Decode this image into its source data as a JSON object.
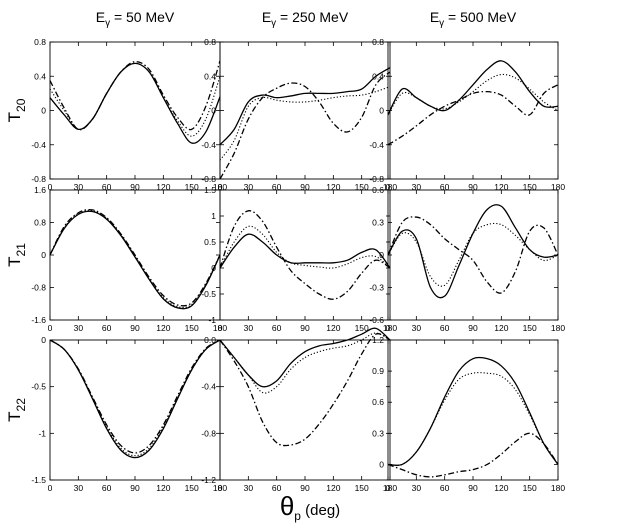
{
  "figure": {
    "x_axis_symbol": "θ",
    "x_axis_subscript": "p",
    "x_axis_unit": " (deg)"
  },
  "chart_data": {
    "type": "line",
    "x_ticks": [
      "0",
      "30",
      "60",
      "90",
      "120",
      "150",
      "180"
    ],
    "xlim": [
      0,
      180
    ],
    "columns": [
      {
        "prefix": "E",
        "sub": "γ",
        "suffix": " = 50 MeV"
      },
      {
        "prefix": "E",
        "sub": "γ",
        "suffix": " = 250 MeV"
      },
      {
        "prefix": "E",
        "sub": "γ",
        "suffix": " = 500 MeV"
      }
    ],
    "rows": [
      {
        "base": "T",
        "sub": "20"
      },
      {
        "base": "T",
        "sub": "21"
      },
      {
        "base": "T",
        "sub": "22"
      }
    ],
    "series_styles": [
      {
        "name": "solid",
        "dash": ""
      },
      {
        "name": "dotted",
        "dash": "1.2 2"
      },
      {
        "name": "dash-dot",
        "dash": "6 2.5 1.5 2.5"
      }
    ],
    "panels": [
      {
        "row": 0,
        "col": 0,
        "ylim": [
          -0.8,
          0.8
        ],
        "yticks": [
          "0.8",
          "0.4",
          "0",
          "-0.4",
          "-0.8"
        ],
        "ytick_values": [
          0.8,
          0.4,
          0,
          -0.4,
          -0.8
        ],
        "x": [
          0,
          15,
          30,
          45,
          60,
          75,
          90,
          105,
          120,
          135,
          150,
          165,
          180
        ],
        "series": [
          {
            "style": 0,
            "values": [
              0.15,
              -0.05,
              -0.22,
              -0.1,
              0.2,
              0.45,
              0.55,
              0.45,
              0.15,
              -0.15,
              -0.38,
              -0.25,
              0.16
            ]
          },
          {
            "style": 1,
            "values": [
              0.25,
              0.0,
              -0.22,
              -0.1,
              0.2,
              0.45,
              0.55,
              0.45,
              0.15,
              -0.12,
              -0.3,
              -0.1,
              0.4
            ]
          },
          {
            "style": 2,
            "values": [
              0.35,
              0.03,
              -0.22,
              -0.1,
              0.2,
              0.45,
              0.57,
              0.48,
              0.18,
              -0.08,
              -0.22,
              0.05,
              0.58
            ]
          }
        ]
      },
      {
        "row": 0,
        "col": 1,
        "ylim": [
          -0.8,
          0.8
        ],
        "yticks": [
          "0.8",
          "0.4",
          "0",
          "-0.4",
          "-0.8"
        ],
        "ytick_values": [
          0.8,
          0.4,
          0,
          -0.4,
          -0.8
        ],
        "x": [
          0,
          15,
          30,
          45,
          60,
          75,
          90,
          105,
          120,
          135,
          150,
          165,
          180
        ],
        "series": [
          {
            "style": 0,
            "values": [
              -0.4,
              -0.22,
              0.1,
              0.18,
              0.15,
              0.17,
              0.2,
              0.2,
              0.2,
              0.22,
              0.25,
              0.4,
              0.5
            ]
          },
          {
            "style": 1,
            "values": [
              -0.58,
              -0.35,
              0.05,
              0.15,
              0.12,
              0.1,
              0.1,
              0.12,
              0.15,
              0.17,
              0.18,
              0.22,
              0.28
            ]
          },
          {
            "style": 2,
            "values": [
              -0.8,
              -0.5,
              -0.1,
              0.15,
              0.26,
              0.32,
              0.28,
              0.1,
              -0.15,
              -0.25,
              -0.08,
              0.3,
              0.45
            ]
          }
        ]
      },
      {
        "row": 0,
        "col": 2,
        "ylim": [
          -0.8,
          0.8
        ],
        "yticks": [
          "0.8",
          "0.4",
          "0",
          "-0.4",
          "-0.8"
        ],
        "ytick_values": [
          0.8,
          0.4,
          0,
          -0.4,
          -0.8
        ],
        "x": [
          0,
          15,
          30,
          45,
          60,
          75,
          90,
          105,
          120,
          135,
          150,
          165,
          180
        ],
        "series": [
          {
            "style": 0,
            "values": [
              -0.05,
              0.25,
              0.15,
              0.05,
              0.0,
              0.12,
              0.3,
              0.48,
              0.58,
              0.45,
              0.22,
              0.05,
              0.05
            ]
          },
          {
            "style": 1,
            "values": [
              -0.05,
              0.2,
              0.15,
              0.05,
              0.02,
              0.1,
              0.22,
              0.35,
              0.42,
              0.38,
              0.25,
              0.1,
              0.0
            ]
          },
          {
            "style": 2,
            "values": [
              -0.4,
              -0.3,
              -0.18,
              -0.05,
              0.05,
              0.12,
              0.2,
              0.22,
              0.18,
              0.05,
              -0.05,
              0.2,
              0.3
            ]
          }
        ]
      },
      {
        "row": 1,
        "col": 0,
        "ylim": [
          -1.6,
          1.6
        ],
        "yticks": [
          "1.6",
          "0.8",
          "0",
          "-0.8",
          "-1.6"
        ],
        "ytick_values": [
          1.6,
          0.8,
          0,
          -0.8,
          -1.6
        ],
        "x": [
          0,
          15,
          30,
          45,
          60,
          75,
          90,
          105,
          120,
          135,
          150,
          165,
          180
        ],
        "series": [
          {
            "style": 0,
            "values": [
              0.0,
              0.65,
              1.0,
              1.07,
              0.88,
              0.48,
              -0.05,
              -0.6,
              -1.08,
              -1.3,
              -1.25,
              -0.75,
              0.0
            ]
          },
          {
            "style": 1,
            "values": [
              0.0,
              0.67,
              1.02,
              1.09,
              0.9,
              0.5,
              -0.03,
              -0.58,
              -1.05,
              -1.27,
              -1.22,
              -0.72,
              0.0
            ]
          },
          {
            "style": 2,
            "values": [
              0.0,
              0.7,
              1.04,
              1.11,
              0.92,
              0.52,
              0.0,
              -0.55,
              -1.0,
              -1.23,
              -1.18,
              -0.7,
              0.0
            ]
          }
        ]
      },
      {
        "row": 1,
        "col": 1,
        "ylim": [
          -1.0,
          1.5
        ],
        "yticks": [
          "1.5",
          "1",
          "0.5",
          "0",
          "-0.5",
          "-1"
        ],
        "ytick_values": [
          1.5,
          1,
          0.5,
          0,
          -0.5,
          -1
        ],
        "x": [
          0,
          15,
          30,
          45,
          60,
          75,
          90,
          105,
          120,
          135,
          150,
          165,
          180
        ],
        "series": [
          {
            "style": 0,
            "values": [
              0.0,
              0.4,
              0.65,
              0.5,
              0.25,
              0.1,
              0.1,
              0.1,
              0.1,
              0.15,
              0.3,
              0.35,
              0.0
            ]
          },
          {
            "style": 1,
            "values": [
              0.0,
              0.5,
              0.8,
              0.65,
              0.3,
              0.1,
              0.05,
              0.02,
              0.0,
              0.08,
              0.2,
              0.22,
              0.0
            ]
          },
          {
            "style": 2,
            "values": [
              0.0,
              0.8,
              1.1,
              0.9,
              0.4,
              -0.05,
              -0.3,
              -0.5,
              -0.6,
              -0.45,
              -0.1,
              0.15,
              0.0
            ]
          }
        ]
      },
      {
        "row": 1,
        "col": 2,
        "ylim": [
          -0.6,
          0.6
        ],
        "yticks": [
          "0.6",
          "0.3",
          "0",
          "-0.3",
          "-0.6"
        ],
        "ytick_values": [
          0.6,
          0.3,
          0,
          -0.3,
          -0.6
        ],
        "x": [
          0,
          15,
          30,
          45,
          60,
          75,
          90,
          105,
          120,
          135,
          150,
          165,
          180
        ],
        "series": [
          {
            "style": 0,
            "values": [
              0.0,
              0.22,
              0.15,
              -0.3,
              -0.38,
              -0.1,
              0.2,
              0.42,
              0.45,
              0.25,
              0.05,
              -0.02,
              0.0
            ]
          },
          {
            "style": 1,
            "values": [
              0.0,
              0.2,
              0.12,
              -0.2,
              -0.28,
              -0.05,
              0.2,
              0.28,
              0.28,
              0.18,
              0.05,
              -0.05,
              0.0
            ]
          },
          {
            "style": 2,
            "values": [
              0.0,
              0.3,
              0.35,
              0.28,
              0.15,
              0.05,
              -0.05,
              -0.25,
              -0.35,
              -0.15,
              0.22,
              0.25,
              0.0
            ]
          }
        ]
      },
      {
        "row": 2,
        "col": 0,
        "ylim": [
          -1.5,
          0.0
        ],
        "yticks": [
          "0",
          "-0.5",
          "-1",
          "-1.5"
        ],
        "ytick_values": [
          0,
          -0.5,
          -1,
          -1.5
        ],
        "x": [
          0,
          15,
          30,
          45,
          60,
          75,
          90,
          105,
          120,
          135,
          150,
          165,
          180
        ],
        "series": [
          {
            "style": 0,
            "values": [
              0.0,
              -0.1,
              -0.32,
              -0.63,
              -0.95,
              -1.18,
              -1.26,
              -1.18,
              -0.95,
              -0.63,
              -0.32,
              -0.1,
              0.0
            ]
          },
          {
            "style": 1,
            "values": [
              0.0,
              -0.1,
              -0.32,
              -0.62,
              -0.93,
              -1.16,
              -1.24,
              -1.16,
              -0.93,
              -0.62,
              -0.32,
              -0.1,
              0.0
            ]
          },
          {
            "style": 2,
            "values": [
              0.0,
              -0.1,
              -0.31,
              -0.61,
              -0.91,
              -1.13,
              -1.21,
              -1.13,
              -0.91,
              -0.6,
              -0.3,
              -0.09,
              0.0
            ]
          }
        ]
      },
      {
        "row": 2,
        "col": 1,
        "ylim": [
          -1.2,
          0.0
        ],
        "yticks": [
          "0.0",
          "-0.4",
          "-0.8",
          "-1.2"
        ],
        "ytick_values": [
          0,
          -0.4,
          -0.8,
          -1.2
        ],
        "x": [
          0,
          15,
          30,
          45,
          60,
          75,
          90,
          105,
          120,
          135,
          150,
          165,
          180
        ],
        "series": [
          {
            "style": 0,
            "values": [
              0.0,
              -0.15,
              -0.3,
              -0.4,
              -0.35,
              -0.2,
              -0.1,
              -0.05,
              -0.03,
              0.0,
              0.05,
              0.1,
              0.0
            ]
          },
          {
            "style": 1,
            "values": [
              0.0,
              -0.15,
              -0.3,
              -0.45,
              -0.4,
              -0.25,
              -0.15,
              -0.1,
              -0.07,
              -0.05,
              0.0,
              0.06,
              0.0
            ]
          },
          {
            "style": 2,
            "values": [
              0.0,
              -0.18,
              -0.4,
              -0.7,
              -0.88,
              -0.9,
              -0.85,
              -0.72,
              -0.55,
              -0.35,
              -0.12,
              0.05,
              0.0
            ]
          }
        ]
      },
      {
        "row": 2,
        "col": 2,
        "ylim": [
          -0.15,
          1.2
        ],
        "yticks": [
          "1.2",
          "0.9",
          "0.6",
          "0.3",
          "0"
        ],
        "ytick_values": [
          1.2,
          0.9,
          0.6,
          0.3,
          0
        ],
        "x": [
          0,
          15,
          30,
          45,
          60,
          75,
          90,
          105,
          120,
          135,
          150,
          165,
          180
        ],
        "series": [
          {
            "style": 0,
            "values": [
              0.0,
              0.0,
              0.12,
              0.35,
              0.65,
              0.9,
              1.02,
              1.02,
              0.95,
              0.78,
              0.5,
              0.2,
              0.0
            ]
          },
          {
            "style": 1,
            "values": [
              0.0,
              0.0,
              0.12,
              0.35,
              0.62,
              0.82,
              0.88,
              0.88,
              0.85,
              0.72,
              0.48,
              0.2,
              0.0
            ]
          },
          {
            "style": 2,
            "values": [
              0.0,
              -0.05,
              -0.1,
              -0.12,
              -0.1,
              -0.07,
              -0.05,
              0.0,
              0.1,
              0.22,
              0.3,
              0.2,
              0.0
            ]
          }
        ]
      }
    ]
  }
}
